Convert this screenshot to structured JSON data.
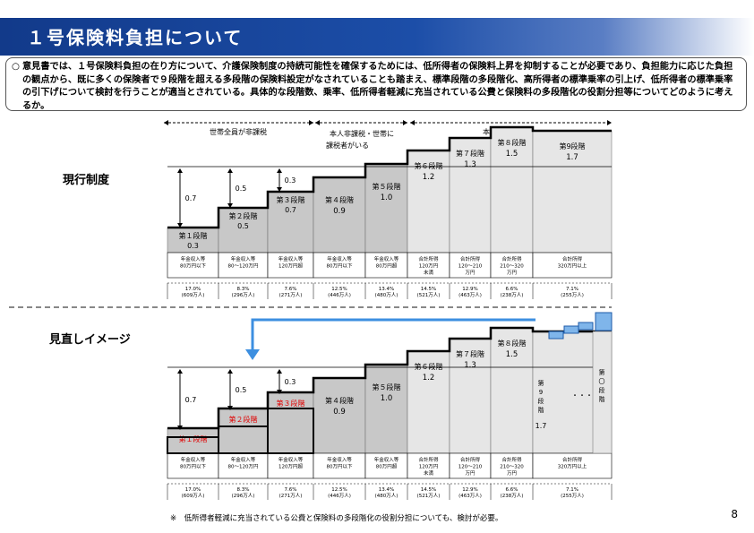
{
  "title": "１号保険料負担について",
  "intro": {
    "mark": "○",
    "text": "意見書では、１号保険料負担の在り方について、介護保険制度の持続可能性を確保するためには、低所得者の保険料上昇を抑制することが必要であり、負担能力に応じた負担の観点から、既に多くの保険者で９段階を超える多段階の保険料設定がなされていることも踏まえ、標準段階の多段階化、高所得者の標準乗率の引上げ、低所得者の標準乗率の引下げについて検討を行うことが適当とされている。具体的な段階数、乗率、低所得者軽減に充当されている公費と保険料の多段階化の役割分担等についてどのように考えるか。"
  },
  "groups": [
    {
      "label": "世帯全員が非課税"
    },
    {
      "label": "本人非課税・世帯に"
    },
    {
      "label": "課税者がいる"
    },
    {
      "label": "本人課税"
    }
  ],
  "current": {
    "label": "現行制度",
    "reductions": [
      "0.7",
      "0.5",
      "0.3"
    ],
    "stages": [
      {
        "name": "第１段階",
        "rate": "0.3"
      },
      {
        "name": "第２段階",
        "rate": "0.5"
      },
      {
        "name": "第３段階",
        "rate": "0.7"
      },
      {
        "name": "第４段階",
        "rate": "0.9"
      },
      {
        "name": "第５段階",
        "rate": "1.0"
      },
      {
        "name": "第６段階",
        "rate": "1.2"
      },
      {
        "name": "第７段階",
        "rate": "1.3"
      },
      {
        "name": "第８段階",
        "rate": "1.5"
      },
      {
        "name": "第9段階",
        "rate": "1.7"
      }
    ]
  },
  "review": {
    "label": "見直しイメージ",
    "reductions": [
      "0.7",
      "0.5",
      "0.3"
    ],
    "stages": [
      {
        "name": "第１段階",
        "rate": ""
      },
      {
        "name": "第２段階",
        "rate": ""
      },
      {
        "name": "第３段階",
        "rate": ""
      },
      {
        "name": "第４段階",
        "rate": "0.9"
      },
      {
        "name": "第５段階",
        "rate": "1.0"
      },
      {
        "name": "第６段階",
        "rate": "1.2"
      },
      {
        "name": "第７段階",
        "rate": "1.3"
      },
      {
        "name": "第８段階",
        "rate": "1.5"
      },
      {
        "name": "第9段階",
        "rate": "1.7"
      },
      {
        "name": "第〇段階",
        "rate": ""
      }
    ],
    "dots": "・・・"
  },
  "income": [
    [
      "年金収入等",
      "80万円以下"
    ],
    [
      "年金収入等",
      "80〜120万円"
    ],
    [
      "年金収入等",
      "120万円超"
    ],
    [
      "年金収入等",
      "80万円以下"
    ],
    [
      "年金収入等",
      "80万円超"
    ],
    [
      "合計所得",
      "120万円",
      "未満"
    ],
    [
      "合計所得",
      "120〜210",
      "万円"
    ],
    [
      "合計所得",
      "210〜320",
      "万円"
    ],
    [
      "合計所得",
      "320万円以上"
    ]
  ],
  "share": [
    [
      "17.0%",
      "(609万人)"
    ],
    [
      "8.3%",
      "(296万人)"
    ],
    [
      "7.6%",
      "(271万人)"
    ],
    [
      "12.5%",
      "(446万人)"
    ],
    [
      "13.4%",
      "(480万人)"
    ],
    [
      "14.5%",
      "(521万人)"
    ],
    [
      "12.9%",
      "(463万人)"
    ],
    [
      "6.6%",
      "(238万人)"
    ],
    [
      "7.1%",
      "(255万人)"
    ]
  ],
  "footnote": "※　低所得者軽減に充当されている公費と保険料の多段階化の役割分担についても、検討が必要。",
  "page": "8",
  "colors": {
    "banner": "#1c4ea8",
    "gray": "#c8c8c8",
    "light": "#e6e6e6",
    "red": "#e00000",
    "blue": "#3d8fe0"
  }
}
